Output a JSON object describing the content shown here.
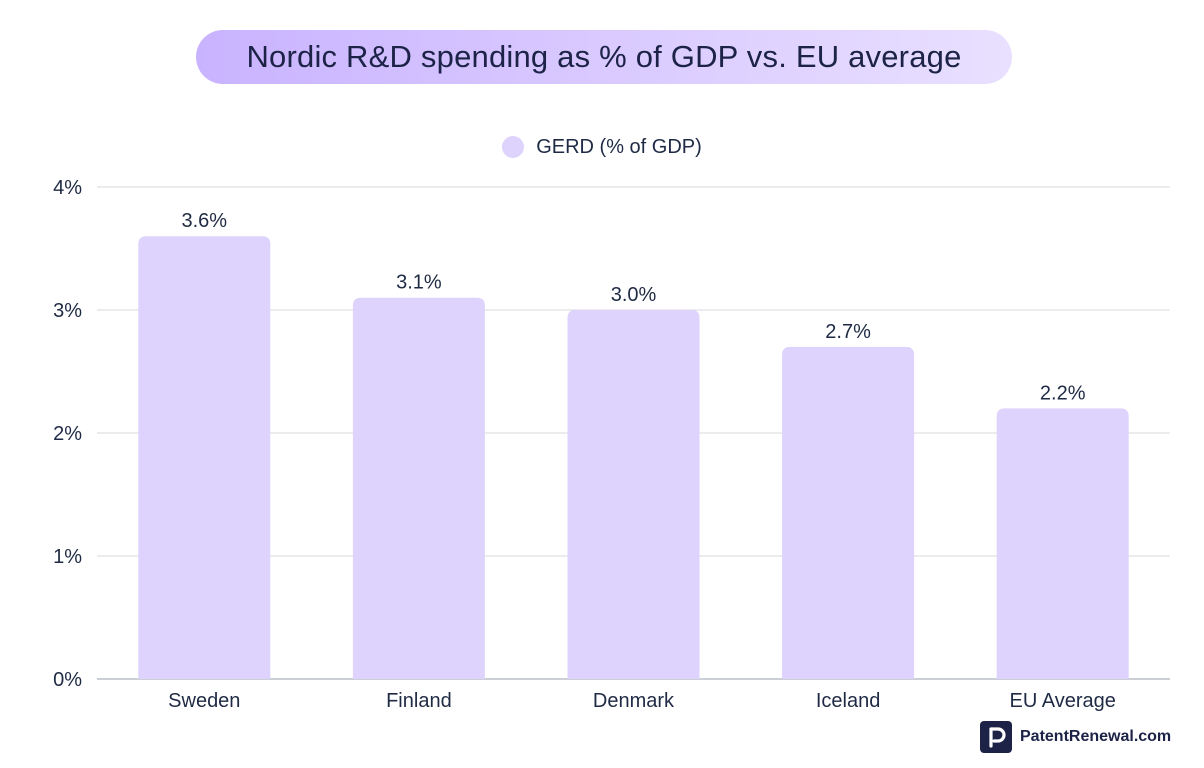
{
  "chart_data": {
    "type": "bar",
    "title": "Nordic R&D spending as % of GDP vs. EU average",
    "categories": [
      "Sweden",
      "Finland",
      "Denmark",
      "Iceland",
      "EU Average"
    ],
    "series": [
      {
        "name": "GERD (% of GDP)",
        "values": [
          3.6,
          3.1,
          3.0,
          2.7,
          2.2
        ],
        "labels": [
          "3.6%",
          "3.1%",
          "3.0%",
          "2.7%",
          "2.2%"
        ]
      }
    ],
    "ylim": [
      0,
      4
    ],
    "yticks": [
      0,
      1,
      2,
      3,
      4
    ],
    "ytick_labels": [
      "0%",
      "1%",
      "2%",
      "3%",
      "4%"
    ],
    "xlabel": "",
    "ylabel": "",
    "grid": true,
    "legend": "top-center",
    "bar_color": "#ddd3fd"
  },
  "branding": {
    "logo_text": "PatentRenewal.com",
    "logo_icon": "patentrenewal-p-icon"
  }
}
